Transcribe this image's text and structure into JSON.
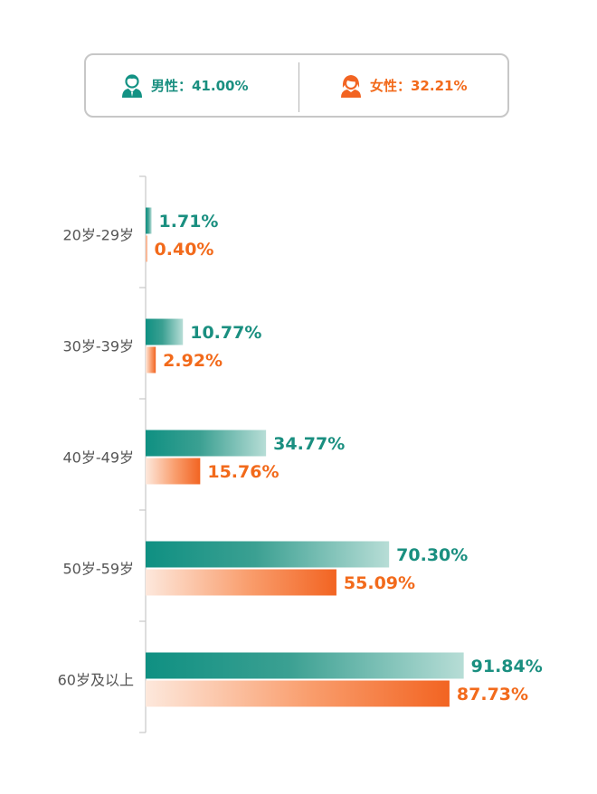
{
  "legend": {
    "male_label": "男性：41.00%",
    "female_label": "女性：32.21%"
  },
  "colors": {
    "male": "#139284",
    "female": "#f26422",
    "male_text": "#1a8f80",
    "female_text": "#f26a1b"
  },
  "chart_data": {
    "type": "bar",
    "orientation": "horizontal",
    "categories": [
      "20岁-29岁",
      "30岁-39岁",
      "40岁-49岁",
      "50岁-59岁",
      "60岁及以上"
    ],
    "series": [
      {
        "name": "男性",
        "values": [
          1.71,
          10.77,
          34.77,
          70.3,
          91.84
        ],
        "labels": [
          "1.71%",
          "10.77%",
          "34.77%",
          "70.30%",
          "91.84%"
        ]
      },
      {
        "name": "女性",
        "values": [
          0.4,
          2.92,
          15.76,
          55.09,
          87.73
        ],
        "labels": [
          "0.40%",
          "2.92%",
          "15.76%",
          "55.09%",
          "87.73%"
        ]
      }
    ],
    "xlim": [
      0,
      100
    ],
    "legend": "top"
  }
}
